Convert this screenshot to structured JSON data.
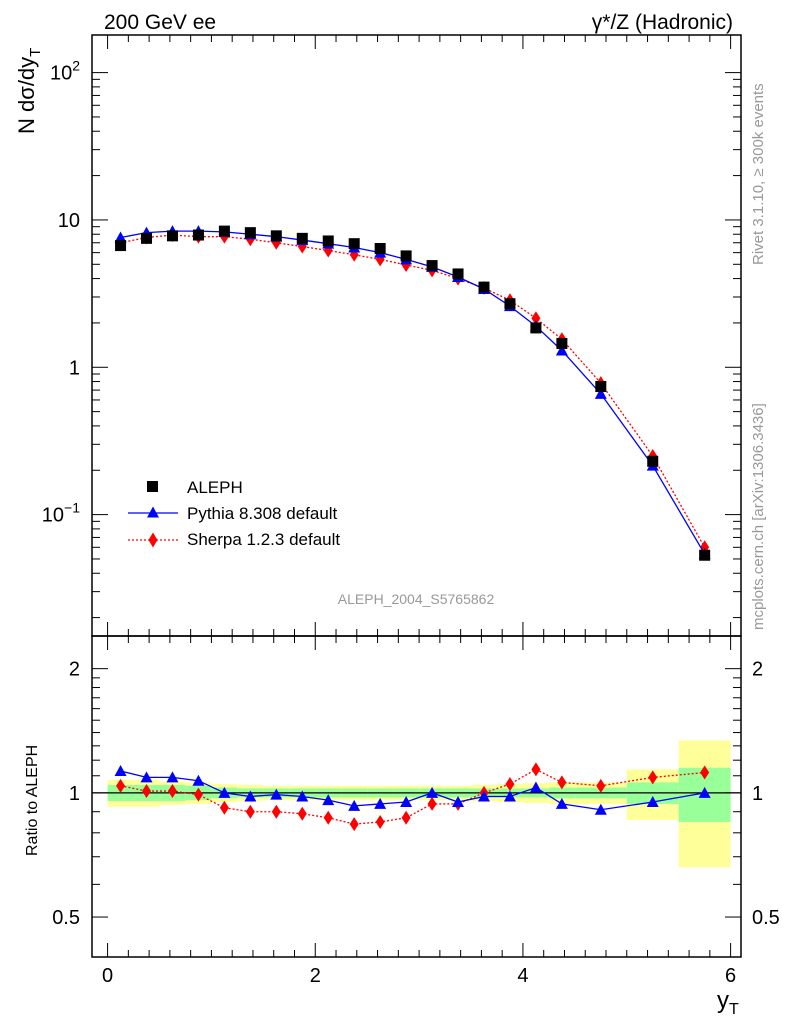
{
  "header": {
    "left": "200 GeV ee",
    "right": "γ*/Z (Hadronic)"
  },
  "side": {
    "rivet": "Rivet 3.1.10, ≥ 300k events",
    "mcplots": "mcplots.cern.ch [arXiv:1306.3436]"
  },
  "watermark": "ALEPH_2004_S5765862",
  "colors": {
    "data": "#000000",
    "pythia": "#0000ff",
    "sherpa": "#ff0000",
    "band_stat": "#99ff99",
    "band_syst": "#ffff99"
  },
  "chart_data": [
    {
      "type": "scatter",
      "panel": "main",
      "ylabel": "N dσ/dy",
      "ylabel_sub": "T",
      "yscale": "log",
      "ylim": [
        0.015,
        180
      ],
      "xlim": [
        -0.15,
        6.1
      ],
      "y_ticks": [
        {
          "value": 100,
          "base": "10",
          "exp": "2"
        },
        {
          "value": 10,
          "base": "10",
          "exp": ""
        },
        {
          "value": 1,
          "base": "1",
          "exp": ""
        },
        {
          "value": 0.1,
          "base": "10",
          "exp": "−1"
        }
      ],
      "legend_position": "lower-left",
      "x": [
        0.125,
        0.375,
        0.625,
        0.875,
        1.125,
        1.375,
        1.625,
        1.875,
        2.125,
        2.375,
        2.625,
        2.875,
        3.125,
        3.375,
        3.625,
        3.875,
        4.125,
        4.375,
        4.75,
        5.25,
        5.75
      ],
      "series": [
        {
          "name": "ALEPH",
          "style": "square",
          "values": [
            6.7,
            7.5,
            7.8,
            7.9,
            8.4,
            8.2,
            7.8,
            7.5,
            7.2,
            6.9,
            6.4,
            5.7,
            4.9,
            4.3,
            3.5,
            2.7,
            1.85,
            1.45,
            0.74,
            0.23,
            0.053
          ]
        },
        {
          "name": "Pythia 8.308 default",
          "style": "triangle",
          "values": [
            7.6,
            8.2,
            8.4,
            8.4,
            8.3,
            8.0,
            7.7,
            7.3,
            6.9,
            6.5,
            6.0,
            5.4,
            4.8,
            4.1,
            3.4,
            2.6,
            1.9,
            1.3,
            0.66,
            0.215,
            0.054
          ]
        },
        {
          "name": "Sherpa 1.2.3 default",
          "style": "diamond",
          "values": [
            7.0,
            7.6,
            7.9,
            7.7,
            7.7,
            7.4,
            7.0,
            6.6,
            6.2,
            5.8,
            5.4,
            4.95,
            4.55,
            4.0,
            3.45,
            2.85,
            2.15,
            1.55,
            0.78,
            0.25,
            0.06
          ]
        }
      ]
    },
    {
      "type": "line",
      "panel": "ratio",
      "ylabel": "Ratio to ALEPH",
      "yscale": "log",
      "ylim": [
        0.4,
        2.4
      ],
      "xlim": [
        -0.15,
        6.1
      ],
      "xlabel": "y",
      "xlabel_sub": "T",
      "x_ticks": [
        "0",
        "2",
        "4",
        "6"
      ],
      "y_ticks": [
        "0.5",
        "1",
        "2"
      ],
      "x": [
        0.125,
        0.375,
        0.625,
        0.875,
        1.125,
        1.375,
        1.625,
        1.875,
        2.125,
        2.375,
        2.625,
        2.875,
        3.125,
        3.375,
        3.625,
        3.875,
        4.125,
        4.375,
        4.75,
        5.25,
        5.75
      ],
      "bin_edges": [
        0,
        0.25,
        0.5,
        0.75,
        1.0,
        1.25,
        1.5,
        1.75,
        2.0,
        2.25,
        2.5,
        2.75,
        3.0,
        3.25,
        3.5,
        3.75,
        4.0,
        4.25,
        4.5,
        5.0,
        5.5,
        6.0
      ],
      "band_stat": [
        0.045,
        0.045,
        0.045,
        0.04,
        0.03,
        0.025,
        0.025,
        0.025,
        0.025,
        0.025,
        0.025,
        0.025,
        0.025,
        0.025,
        0.025,
        0.025,
        0.025,
        0.03,
        0.03,
        0.06,
        0.15
      ],
      "band_syst": [
        0.075,
        0.075,
        0.065,
        0.06,
        0.05,
        0.045,
        0.04,
        0.04,
        0.04,
        0.04,
        0.04,
        0.04,
        0.04,
        0.04,
        0.045,
        0.05,
        0.055,
        0.06,
        0.06,
        0.14,
        0.34
      ],
      "series": [
        {
          "name": "Pythia 8.308 default",
          "style": "triangle",
          "values": [
            1.13,
            1.09,
            1.09,
            1.07,
            1.0,
            0.98,
            0.99,
            0.98,
            0.96,
            0.93,
            0.94,
            0.95,
            1.0,
            0.95,
            0.98,
            0.98,
            1.03,
            0.94,
            0.91,
            0.95,
            1.0
          ]
        },
        {
          "name": "Sherpa 1.2.3 default",
          "style": "diamond",
          "values": [
            1.04,
            1.01,
            1.01,
            0.99,
            0.92,
            0.9,
            0.9,
            0.89,
            0.87,
            0.84,
            0.85,
            0.87,
            0.94,
            0.94,
            1.0,
            1.05,
            1.14,
            1.06,
            1.04,
            1.09,
            1.12
          ]
        }
      ]
    }
  ]
}
